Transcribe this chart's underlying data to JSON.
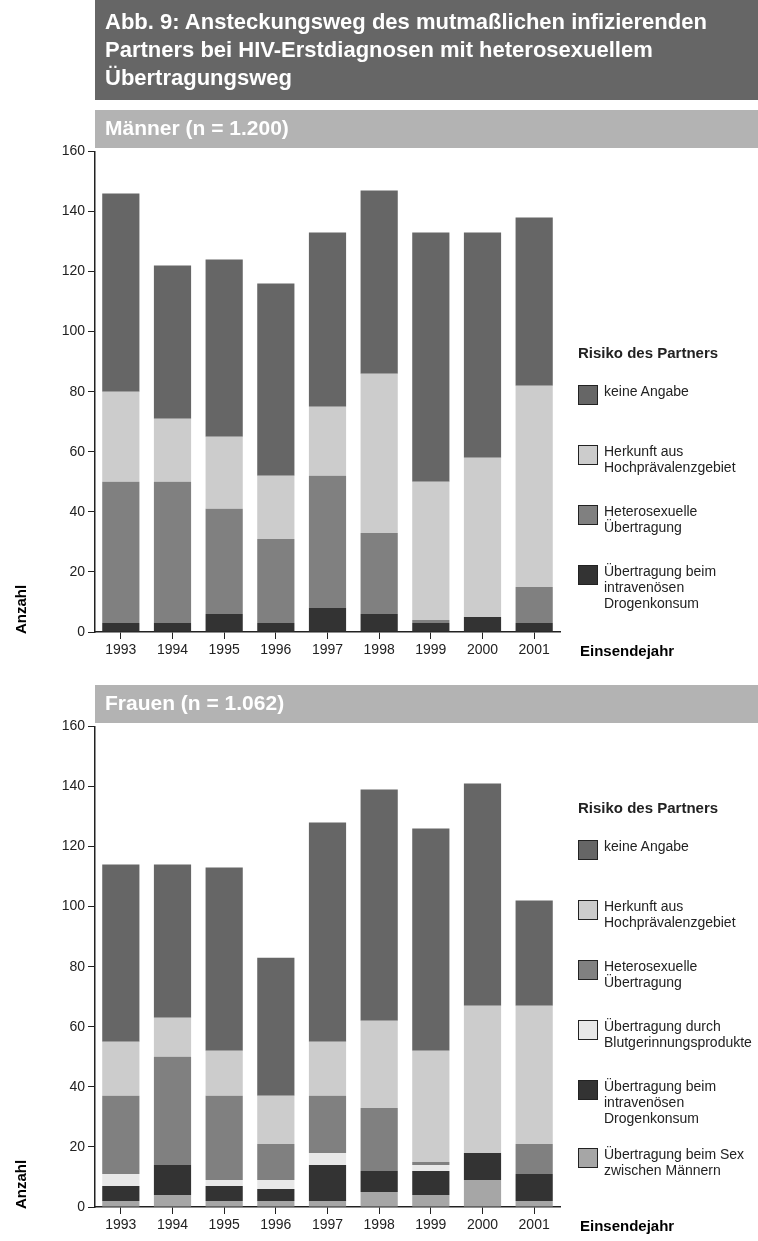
{
  "chart_data": [
    {
      "type": "bar",
      "stacked": true,
      "title": "Abb. 9: Ansteckungsweg des mutmaßlichen infizierenden Partners bei HIV-Erstdiagnosen mit heterosexuellem Übertragungsweg",
      "subtitle": "Männer (n = 1.200)",
      "xlabel": "Einsendejahr",
      "ylabel": "Anzahl",
      "legend_title": "Risiko des Partners",
      "legend": "right",
      "ylim": [
        0,
        160
      ],
      "yticks": [
        0,
        20,
        40,
        60,
        80,
        100,
        120,
        140,
        160
      ],
      "categories": [
        "1993",
        "1994",
        "1995",
        "1996",
        "1997",
        "1998",
        "1999",
        "2000",
        "2001"
      ],
      "series": [
        {
          "name": "Übertragung beim intravenösen Drogenkonsum",
          "color": "#333333",
          "values": [
            3,
            3,
            6,
            3,
            8,
            6,
            3,
            5,
            3
          ]
        },
        {
          "name": "Heterosexuelle Übertragung",
          "color": "#808080",
          "values": [
            47,
            47,
            35,
            28,
            44,
            27,
            1,
            0,
            12
          ]
        },
        {
          "name": "Herkunft aus Hochprävalenzgebiet",
          "color": "#cccccc",
          "values": [
            30,
            21,
            24,
            21,
            23,
            53,
            46,
            53,
            67
          ]
        },
        {
          "name": "keine Angabe",
          "color": "#666666",
          "values": [
            66,
            51,
            59,
            64,
            58,
            61,
            83,
            75,
            56
          ]
        }
      ]
    },
    {
      "type": "bar",
      "stacked": true,
      "subtitle": "Frauen (n = 1.062)",
      "xlabel": "Einsendejahr",
      "ylabel": "Anzahl",
      "legend_title": "Risiko des Partners",
      "legend": "right",
      "ylim": [
        0,
        160
      ],
      "yticks": [
        0,
        20,
        40,
        60,
        80,
        100,
        120,
        140,
        160
      ],
      "categories": [
        "1993",
        "1994",
        "1995",
        "1996",
        "1997",
        "1998",
        "1999",
        "2000",
        "2001"
      ],
      "series": [
        {
          "name": "Übertragung beim Sex zwischen Männern",
          "color": "#a6a6a6",
          "values": [
            2,
            4,
            2,
            2,
            2,
            5,
            4,
            9,
            2
          ]
        },
        {
          "name": "Übertragung beim intravenösen Drogenkonsum",
          "color": "#333333",
          "values": [
            5,
            10,
            5,
            4,
            12,
            7,
            8,
            9,
            9
          ]
        },
        {
          "name": "Übertragung durch Blutgerinnungsprodukte",
          "color": "#e8e8e8",
          "values": [
            4,
            0,
            2,
            3,
            4,
            0,
            2,
            0,
            0
          ]
        },
        {
          "name": "Heterosexuelle Übertragung",
          "color": "#808080",
          "values": [
            26,
            36,
            28,
            12,
            19,
            21,
            1,
            0,
            10
          ]
        },
        {
          "name": "Herkunft aus Hochprävalenzgebiet",
          "color": "#cccccc",
          "values": [
            18,
            13,
            15,
            16,
            18,
            29,
            37,
            49,
            46
          ]
        },
        {
          "name": "keine Angabe",
          "color": "#666666",
          "values": [
            59,
            51,
            61,
            46,
            73,
            77,
            74,
            74,
            35
          ]
        }
      ]
    }
  ]
}
